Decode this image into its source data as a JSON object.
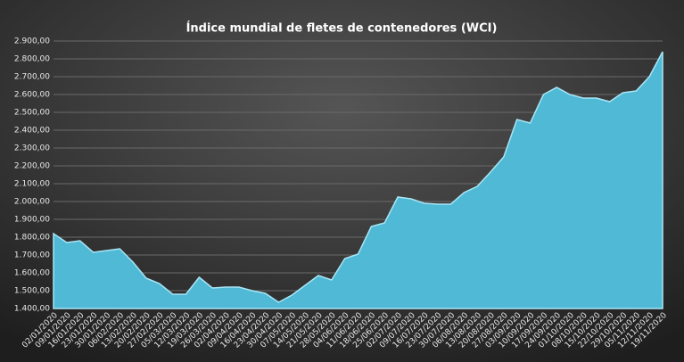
{
  "chart_data": {
    "type": "area",
    "title": "Índice mundial de fletes de contenedores (WCI)",
    "categories": [
      "02/01/2020",
      "09/01/2020",
      "16/01/2020",
      "23/01/2020",
      "30/01/2020",
      "06/02/2020",
      "13/02/2020",
      "20/02/2020",
      "27/02/2020",
      "05/03/2020",
      "12/03/2020",
      "19/03/2020",
      "26/03/2020",
      "02/04/2020",
      "09/04/2020",
      "16/04/2020",
      "23/04/2020",
      "30/04/2020",
      "07/05/2020",
      "14/05/2020",
      "21/05/2020",
      "28/05/2020",
      "04/06/2020",
      "11/06/2020",
      "18/06/2020",
      "25/06/2020",
      "02/07/2020",
      "09/07/2020",
      "16/07/2020",
      "23/07/2020",
      "30/07/2020",
      "06/08/2020",
      "13/08/2020",
      "20/08/2020",
      "27/08/2020",
      "03/09/2020",
      "10/09/2020",
      "17/09/2020",
      "24/09/2020",
      "01/10/2020",
      "08/10/2020",
      "15/10/2020",
      "22/10/2020",
      "29/10/2020",
      "05/11/2020",
      "12/11/2020",
      "19/11/2020"
    ],
    "values": [
      1820,
      1770,
      1780,
      1715,
      1725,
      1735,
      1660,
      1570,
      1540,
      1480,
      1480,
      1575,
      1515,
      1520,
      1520,
      1500,
      1485,
      1435,
      1475,
      1530,
      1585,
      1560,
      1680,
      1705,
      1860,
      1880,
      2025,
      2015,
      1990,
      1985,
      1985,
      2050,
      2085,
      2165,
      2250,
      2460,
      2440,
      2600,
      2640,
      2600,
      2580,
      2580,
      2560,
      2610,
      2620,
      2700,
      2840
    ],
    "color": "#4fb9d6",
    "ylim": [
      1400,
      2900
    ],
    "yticks": [
      {
        "value": 1400,
        "label": "1.400,00"
      },
      {
        "value": 1500,
        "label": "1.500,00"
      },
      {
        "value": 1600,
        "label": "1.600,00"
      },
      {
        "value": 1700,
        "label": "1.700,00"
      },
      {
        "value": 1800,
        "label": "1.800,00"
      },
      {
        "value": 1900,
        "label": "1.900,00"
      },
      {
        "value": 2000,
        "label": "2.000,00"
      },
      {
        "value": 2100,
        "label": "2.100,00"
      },
      {
        "value": 2200,
        "label": "2.200,00"
      },
      {
        "value": 2300,
        "label": "2.300,00"
      },
      {
        "value": 2400,
        "label": "2.400,00"
      },
      {
        "value": 2500,
        "label": "2.500,00"
      },
      {
        "value": 2600,
        "label": "2.600,00"
      },
      {
        "value": 2700,
        "label": "2.700,00"
      },
      {
        "value": 2800,
        "label": "2.800,00"
      },
      {
        "value": 2900,
        "label": "2.900,00"
      }
    ],
    "grid": true
  }
}
